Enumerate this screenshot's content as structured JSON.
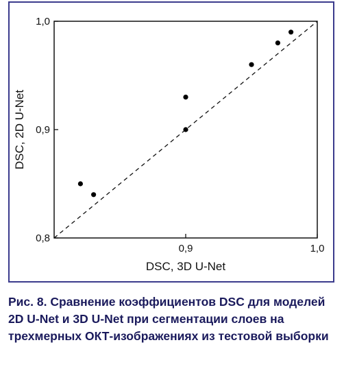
{
  "chart_data": {
    "type": "scatter",
    "xlabel": "DSC, 3D U-Net",
    "ylabel": "DSC, 2D U-Net",
    "xlim": [
      0.8,
      1.0
    ],
    "ylim": [
      0.8,
      1.0
    ],
    "x_ticks": [
      "0,9",
      "1,0"
    ],
    "y_ticks": [
      "0,8",
      "0,9",
      "1,0"
    ],
    "points": [
      {
        "x": 0.82,
        "y": 0.85
      },
      {
        "x": 0.83,
        "y": 0.84
      },
      {
        "x": 0.9,
        "y": 0.93
      },
      {
        "x": 0.9,
        "y": 0.9
      },
      {
        "x": 0.95,
        "y": 0.96
      },
      {
        "x": 0.97,
        "y": 0.98
      },
      {
        "x": 0.98,
        "y": 0.99
      }
    ],
    "reference_line": {
      "style": "dashed",
      "from": [
        0.8,
        0.8
      ],
      "to": [
        1.0,
        1.0
      ]
    },
    "frame_color": "#3a3a8c"
  },
  "caption": "Рис. 8. Сравнение коэффициентов DSC для моделей 2D U-Net и 3D U-Net при сегментации слоев на трехмерных ОКТ-изображениях из тестовой выборки"
}
